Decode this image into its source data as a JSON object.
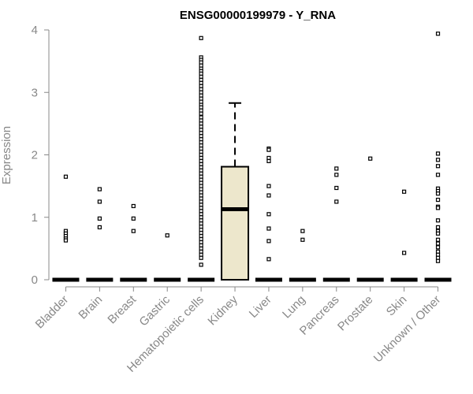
{
  "chart_data": {
    "type": "box",
    "title": "ENSG00000199979 - Y_RNA",
    "xlabel": "",
    "ylabel": "Expression",
    "ylim": [
      0,
      4
    ],
    "yticks": [
      0,
      1,
      2,
      3,
      4
    ],
    "grid": false,
    "categories": [
      "Bladder",
      "Brain",
      "Breast",
      "Gastric",
      "Hematopoietic cells",
      "Kidney",
      "Liver",
      "Lung",
      "Pancreas",
      "Prostate",
      "Skin",
      "Unknown / Other"
    ],
    "boxes": [
      {
        "category": "Bladder",
        "q1": 0,
        "median": 0,
        "q3": 0,
        "whisker_low": 0,
        "whisker_high": 0,
        "outliers": [
          1.65,
          0.78,
          0.74,
          0.7,
          0.66,
          0.63
        ]
      },
      {
        "category": "Brain",
        "q1": 0,
        "median": 0,
        "q3": 0,
        "whisker_low": 0,
        "whisker_high": 0,
        "outliers": [
          1.45,
          1.25,
          0.98,
          0.84
        ]
      },
      {
        "category": "Breast",
        "q1": 0,
        "median": 0,
        "q3": 0,
        "whisker_low": 0,
        "whisker_high": 0,
        "outliers": [
          1.18,
          0.98,
          0.78
        ]
      },
      {
        "category": "Gastric",
        "q1": 0,
        "median": 0,
        "q3": 0,
        "whisker_low": 0,
        "whisker_high": 0,
        "outliers": [
          0.71
        ]
      },
      {
        "category": "Hematopoietic cells",
        "q1": 0,
        "median": 0,
        "q3": 0,
        "whisker_low": 0,
        "whisker_high": 0,
        "outliers": [
          3.87,
          3.56,
          3.52,
          3.48,
          3.43,
          3.38,
          3.34,
          3.3,
          3.25,
          3.2,
          3.15,
          3.1,
          3.05,
          3.0,
          2.95,
          2.9,
          2.85,
          2.8,
          2.76,
          2.71,
          2.66,
          2.6,
          2.55,
          2.5,
          2.45,
          2.4,
          2.35,
          2.3,
          2.25,
          2.2,
          2.15,
          2.1,
          2.05,
          2.0,
          1.95,
          1.9,
          1.85,
          1.8,
          1.75,
          1.7,
          1.65,
          1.6,
          1.55,
          1.5,
          1.45,
          1.4,
          1.35,
          1.3,
          1.25,
          1.2,
          1.15,
          1.1,
          1.05,
          1.0,
          0.95,
          0.9,
          0.85,
          0.8,
          0.75,
          0.7,
          0.65,
          0.6,
          0.55,
          0.5,
          0.45,
          0.4,
          0.35,
          0.24
        ]
      },
      {
        "category": "Kidney",
        "q1": 0,
        "median": 1.13,
        "q3": 1.81,
        "whisker_low": 0,
        "whisker_high": 2.83,
        "outliers": []
      },
      {
        "category": "Liver",
        "q1": 0,
        "median": 0,
        "q3": 0,
        "whisker_low": 0,
        "whisker_high": 0,
        "outliers": [
          2.1,
          2.08,
          1.95,
          1.9,
          1.5,
          1.35,
          1.05,
          0.82,
          0.62,
          0.33
        ]
      },
      {
        "category": "Lung",
        "q1": 0,
        "median": 0,
        "q3": 0,
        "whisker_low": 0,
        "whisker_high": 0,
        "outliers": [
          0.78,
          0.64
        ]
      },
      {
        "category": "Pancreas",
        "q1": 0,
        "median": 0,
        "q3": 0,
        "whisker_low": 0,
        "whisker_high": 0,
        "outliers": [
          1.78,
          1.68,
          1.47,
          1.25
        ]
      },
      {
        "category": "Prostate",
        "q1": 0,
        "median": 0,
        "q3": 0,
        "whisker_low": 0,
        "whisker_high": 0,
        "outliers": [
          1.94
        ]
      },
      {
        "category": "Skin",
        "q1": 0,
        "median": 0,
        "q3": 0,
        "whisker_low": 0,
        "whisker_high": 0,
        "outliers": [
          1.41,
          0.43
        ]
      },
      {
        "category": "Unknown / Other",
        "q1": 0,
        "median": 0,
        "q3": 0,
        "whisker_low": 0,
        "whisker_high": 0,
        "outliers": [
          3.94,
          2.02,
          1.92,
          1.82,
          1.68,
          1.46,
          1.42,
          1.38,
          1.28,
          1.17,
          1.15,
          0.95,
          0.84,
          0.78,
          0.74,
          0.64,
          0.58,
          0.52,
          0.45,
          0.4,
          0.35,
          0.3
        ]
      }
    ],
    "colors": {
      "box_fill": "#ede7cc",
      "box_stroke": "#000000",
      "axis": "#888888",
      "title": "#000000"
    }
  }
}
